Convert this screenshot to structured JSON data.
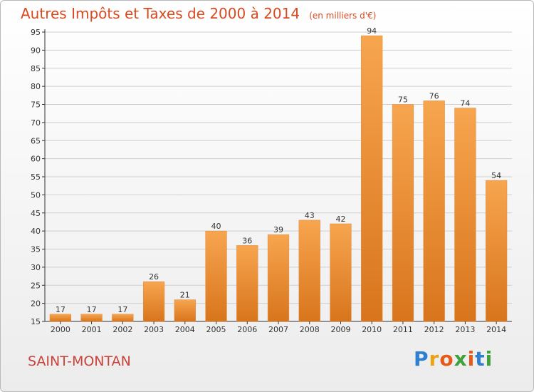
{
  "title": "Autres Impôts et Taxes de 2000 à 2014",
  "subtitle": "(en milliers d'€)",
  "commune": "SAINT-MONTAN",
  "logo": {
    "text": "Proxiti",
    "letters": [
      {
        "ch": "P",
        "color": "#2e7fd1"
      },
      {
        "ch": "r",
        "color": "#e8a318"
      },
      {
        "ch": "o",
        "color": "#e55a1a"
      },
      {
        "ch": "x",
        "color": "#3fa13b"
      },
      {
        "ch": "i",
        "color": "#e55a1a"
      },
      {
        "ch": "t",
        "color": "#2e7fd1"
      },
      {
        "ch": "i",
        "color": "#3fa13b"
      }
    ]
  },
  "colors": {
    "bar_light": "#f7a54f",
    "bar_dark": "#d8751c",
    "title": "#d84a20",
    "grid": "#cfcfcf",
    "axis": "#333333"
  },
  "chart_data": {
    "type": "bar",
    "categories": [
      "2000",
      "2001",
      "2002",
      "2003",
      "2004",
      "2005",
      "2006",
      "2007",
      "2008",
      "2009",
      "2010",
      "2011",
      "2012",
      "2013",
      "2014"
    ],
    "values": [
      17,
      17,
      17,
      26,
      21,
      40,
      36,
      39,
      43,
      42,
      94,
      75,
      76,
      74,
      54
    ],
    "ylim": [
      15,
      95
    ],
    "yticks": [
      15,
      20,
      25,
      30,
      35,
      40,
      45,
      50,
      55,
      60,
      65,
      70,
      75,
      80,
      85,
      90,
      95
    ],
    "grid": true,
    "data_labels": true
  }
}
